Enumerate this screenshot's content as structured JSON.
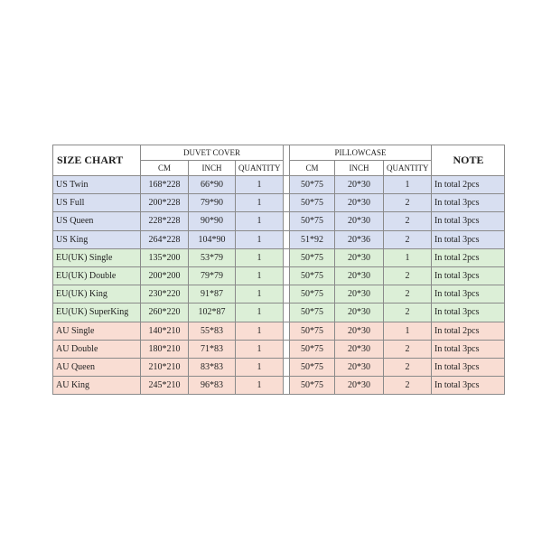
{
  "table": {
    "header": {
      "title": "SIZE CHART",
      "duvet": "DUVET COVER",
      "pillow": "PILLOWCASE",
      "note": "NOTE",
      "duvet_cols": [
        "CM",
        "INCH",
        "QUANTITY"
      ],
      "pillow_cols": [
        "CM",
        "INCH",
        "QUANTITY"
      ]
    },
    "rows": [
      [
        "US Twin",
        "168*228",
        "66*90",
        1,
        "50*75",
        "20*30",
        1,
        "In total 2pcs"
      ],
      [
        "US Full",
        "200*228",
        "79*90",
        1,
        "50*75",
        "20*30",
        2,
        "In total 3pcs"
      ],
      [
        "US Queen",
        "228*228",
        "90*90",
        1,
        "50*75",
        "20*30",
        2,
        "In total 3pcs"
      ],
      [
        "US King",
        "264*228",
        "104*90",
        1,
        "51*92",
        "20*36",
        2,
        "In total 3pcs"
      ],
      [
        "EU(UK) Single",
        "135*200",
        "53*79",
        1,
        "50*75",
        "20*30",
        1,
        "In total 2pcs"
      ],
      [
        "EU(UK) Double",
        "200*200",
        "79*79",
        1,
        "50*75",
        "20*30",
        2,
        "In total 3pcs"
      ],
      [
        "EU(UK) King",
        "230*220",
        "91*87",
        1,
        "50*75",
        "20*30",
        2,
        "In total 3pcs"
      ],
      [
        "EU(UK) SuperKing",
        "260*220",
        "102*87",
        1,
        "50*75",
        "20*30",
        2,
        "In total 3pcs"
      ],
      [
        "AU Single",
        "140*210",
        "55*83",
        1,
        "50*75",
        "20*30",
        1,
        "In total 2pcs"
      ],
      [
        "AU Double",
        "180*210",
        "71*83",
        1,
        "50*75",
        "20*30",
        2,
        "In total 3pcs"
      ],
      [
        "AU Queen",
        "210*210",
        "83*83",
        1,
        "50*75",
        "20*30",
        2,
        "In total 3pcs"
      ],
      [
        "AU King",
        "245*210",
        "96*83",
        1,
        "50*75",
        "20*30",
        2,
        "In total 3pcs"
      ]
    ]
  }
}
